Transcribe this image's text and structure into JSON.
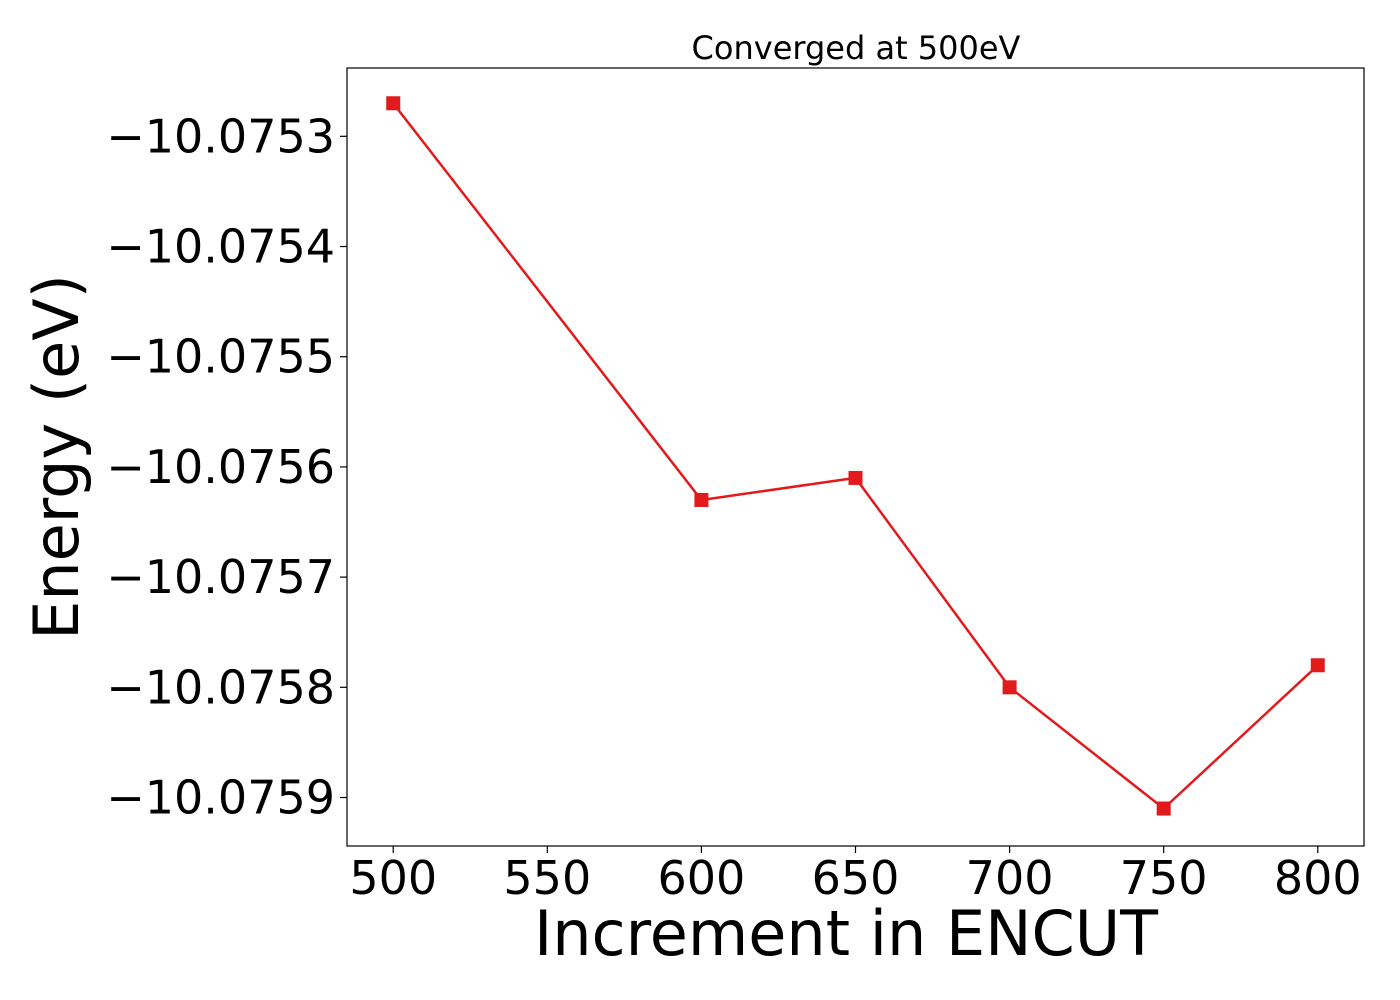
{
  "chart_data": {
    "type": "line",
    "title": "Converged at 500eV",
    "xlabel": "Increment in ENCUT",
    "ylabel": "Energy (eV)",
    "x": [
      500,
      600,
      650,
      700,
      750,
      800
    ],
    "series": [
      {
        "values": [
          -10.07527,
          -10.07563,
          -10.07561,
          -10.0758,
          -10.07591,
          -10.07578
        ],
        "color": "#e31a1c",
        "marker": "square"
      }
    ],
    "xticks": [
      500,
      550,
      600,
      650,
      700,
      750,
      800
    ],
    "xtick_labels": [
      "500",
      "550",
      "600",
      "650",
      "700",
      "750",
      "800"
    ],
    "yticks": [
      -10.0753,
      -10.0754,
      -10.0755,
      -10.0756,
      -10.0757,
      -10.0758,
      -10.0759
    ],
    "ytick_labels": [
      "−10.0753",
      "−10.0754",
      "−10.0755",
      "−10.0756",
      "−10.0757",
      "−10.0758",
      "−10.0759"
    ],
    "xlim": [
      485,
      815
    ],
    "ylim": [
      -10.075944,
      -10.075238
    ],
    "grid": false,
    "legend": "none"
  }
}
